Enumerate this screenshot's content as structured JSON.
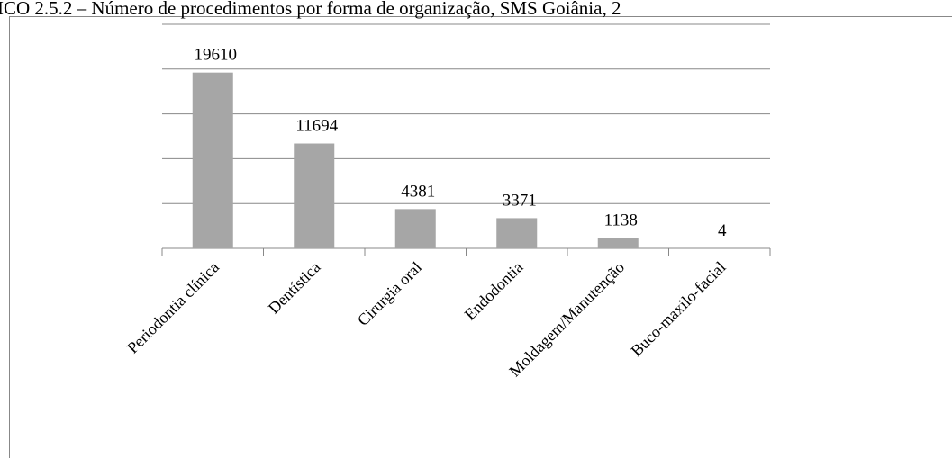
{
  "chart_data": {
    "type": "bar",
    "title": "ICO 2.5.2 – Número de procedimentos por forma de organização, SMS Goiânia, 2",
    "categories": [
      "Periodontia clínica",
      "Dentística",
      "Cirurgia oral",
      "Endodontia",
      "Moldagem/Manutenção",
      "Buco-maxilo-facial"
    ],
    "values": [
      19610,
      11694,
      4381,
      3371,
      1138,
      4
    ],
    "color": "#a6a6a6",
    "ylim": [
      0,
      25000
    ],
    "yticks": [
      0,
      5000,
      10000,
      15000,
      20000,
      25000
    ],
    "grid": true
  }
}
